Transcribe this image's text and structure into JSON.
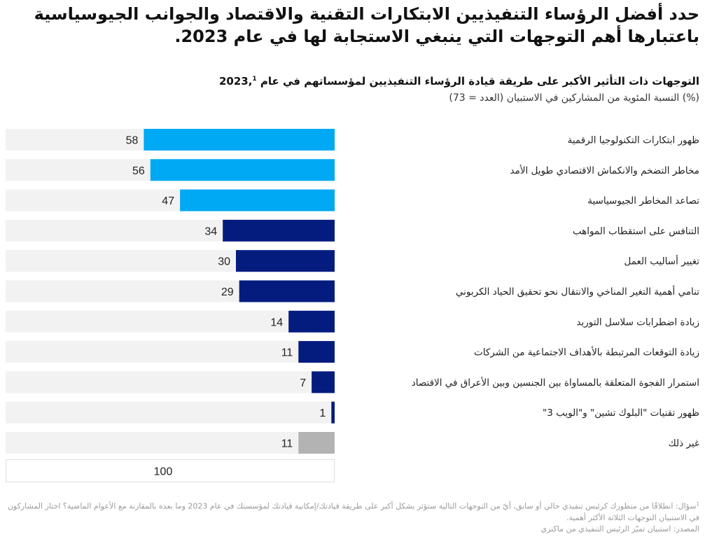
{
  "header": {
    "title": "حدد أفضل الرؤساء التنفيذيين الابتكارات التقنية والاقتصاد والجوانب الجيوسياسية باعتبارها أهم التوجهات التي ينبغي الاستجابة لها في عام 2023.",
    "subtitle": "التوجهات ذات التأثير الأكبر على طريقة قيادة الرؤساء التنفيذيين لمؤسساتهم في عام 2023,",
    "subtitle_footnote_mark": "1",
    "unit_note": "(%) النسبة المئوية من المشاركين في الاستبيان (العدد = 73)"
  },
  "colors": {
    "light_blue": "#00a9f4",
    "dark_blue": "#051c7f",
    "gray": "#b3b3b3",
    "track": "#f2f2f2"
  },
  "chart_data": {
    "type": "bar",
    "orientation": "horizontal",
    "title": "التوجهات ذات التأثير الأكبر على طريقة قيادة الرؤساء التنفيذيين لمؤسساتهم في عام 2023",
    "xlabel": "(%) النسبة المئوية من المشاركين في الاستبيان (العدد = 73)",
    "ylabel": "",
    "xlim": [
      0,
      100
    ],
    "total_label": "100",
    "grid": false,
    "legend": "none",
    "categories": [
      "ظهور ابتكارات التكنولوجيا الرقمية",
      "مخاطر التضخم والانكماش الاقتصادي طويل الأمد",
      "تصاعد المخاطر الجيوسياسية",
      "التنافس على استقطاب المواهب",
      "تغيير أساليب العمل",
      "تنامي أهمية التغير المناخي والانتقال نحو تحقيق الحياد الكربوني",
      "زيادة اضطرابات سلاسل التوريد",
      "زيادة التوقعات المرتبطة بالأهداف الاجتماعية من الشركات",
      "استمرار الفجوة المتعلقة بالمساواة بين الجنسين وبين الأعراق في الاقتصاد",
      "ظهور تقنيات \"البلوك تشين\" و\"الويب 3\"",
      "غير ذلك"
    ],
    "values": [
      58,
      56,
      47,
      34,
      30,
      29,
      14,
      11,
      7,
      1,
      11
    ],
    "bar_color_keys": [
      "light_blue",
      "light_blue",
      "light_blue",
      "dark_blue",
      "dark_blue",
      "dark_blue",
      "dark_blue",
      "dark_blue",
      "dark_blue",
      "dark_blue",
      "gray"
    ]
  },
  "footnote": {
    "mark": "1",
    "question": "سؤال: انطلاقًا من منظورك كرئيس تنفيذي حالي أو سابق، أيّ من التوجهات التالية ستؤثر بشكل أكبر على طريقة قيادتك/إمكانية قيادتك لمؤسستك في عام 2023 وما بعده بالمقارنة مع الأعوام الماضية؟ اختار المشاركون في الاستبيان التوجهات الثلاثة الأكثر أهمية.",
    "source": "المصدر: استبيان تميّز الرئيس التنفيذي من ماكنزي"
  }
}
